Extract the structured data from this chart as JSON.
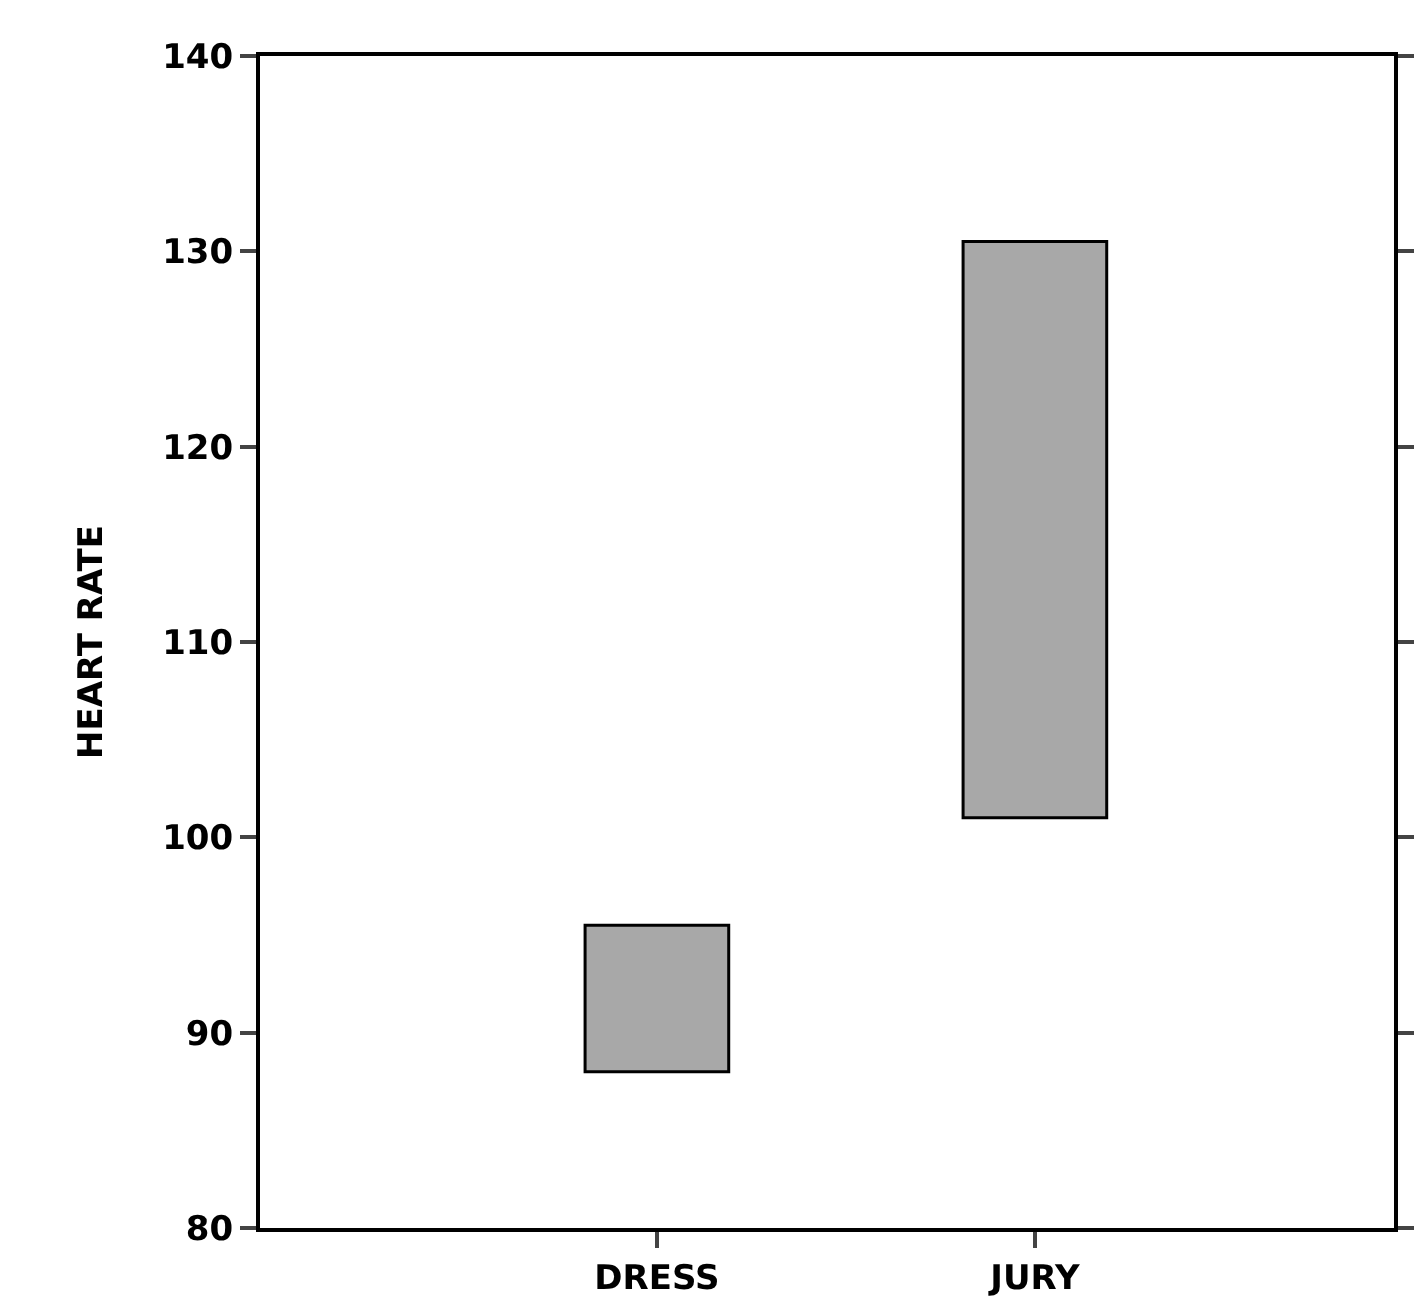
{
  "chart_data": {
    "type": "bar",
    "ylabel": "HEART RATE",
    "categories": [
      "DRESS",
      "JURY"
    ],
    "values": [
      7.5,
      29.5
    ],
    "base": [
      88,
      101
    ],
    "color": "#a8a8a8",
    "ylim": [
      80,
      140
    ],
    "yticks": [
      80,
      90,
      100,
      110,
      120,
      130,
      140
    ]
  }
}
